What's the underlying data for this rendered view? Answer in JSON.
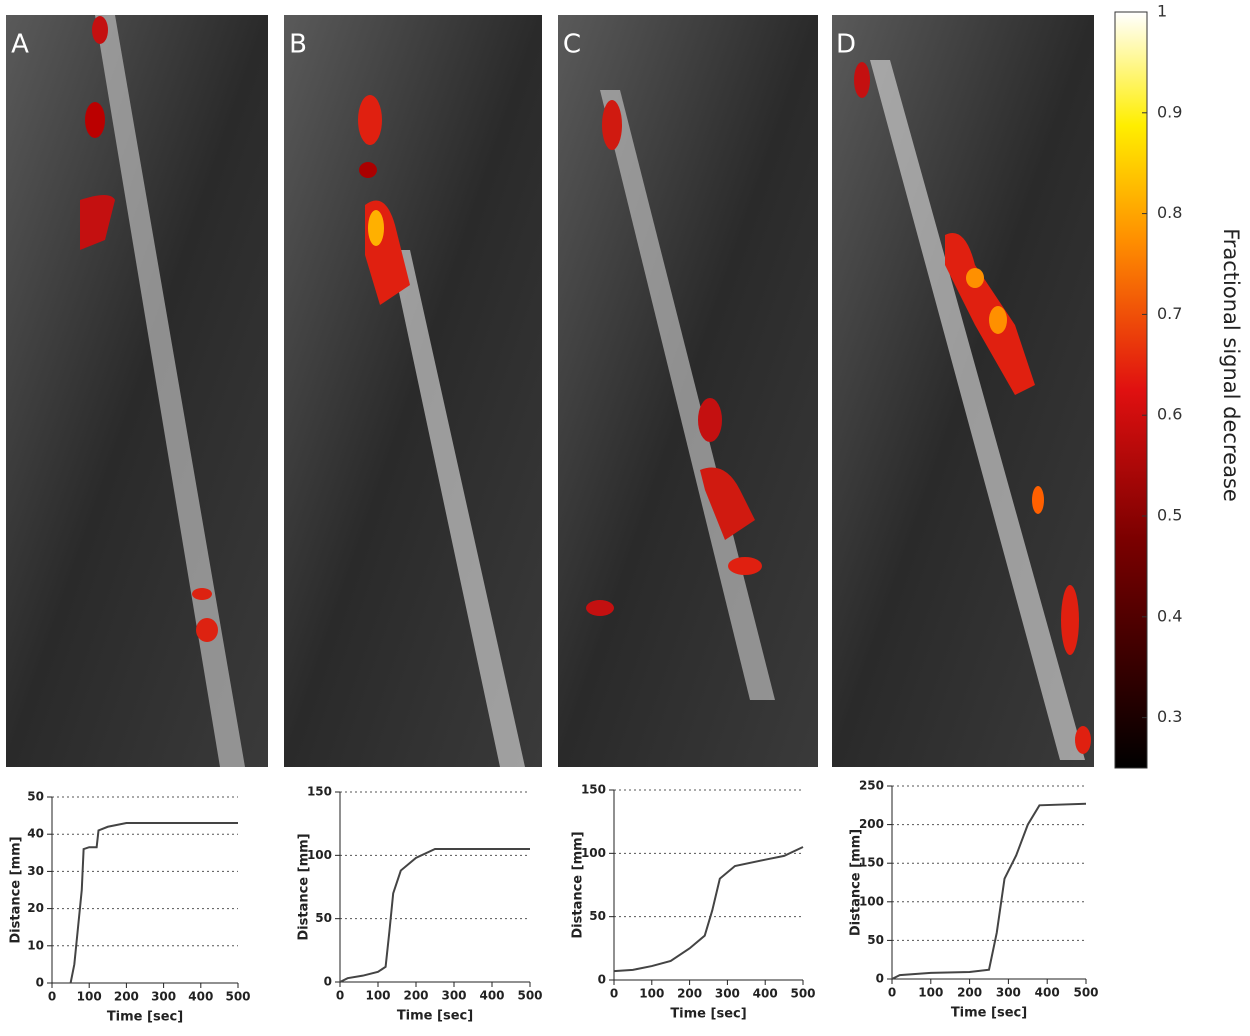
{
  "chart_data": [
    {
      "type": "colorbar",
      "label": "Fractional signal decrease",
      "ylim": [
        0.25,
        1
      ],
      "yticks": [
        0.3,
        0.4,
        0.5,
        0.6,
        0.7,
        0.8,
        0.9,
        1
      ]
    },
    {
      "type": "line",
      "panel": "A",
      "xlabel": "Time [sec]",
      "ylabel": "Distance [mm]",
      "color": "#444444",
      "grid": true,
      "x": [
        50,
        60,
        70,
        80,
        85,
        100,
        120,
        125,
        150,
        200,
        300,
        500
      ],
      "values": [
        0,
        5,
        15,
        25,
        36,
        36.5,
        36.5,
        41,
        42,
        43,
        43,
        43
      ],
      "xlim": [
        0,
        500
      ],
      "xticks": [
        0,
        100,
        200,
        300,
        400,
        500
      ],
      "ylim": [
        0,
        50
      ],
      "yticks": [
        0,
        10,
        20,
        30,
        40,
        50
      ]
    },
    {
      "type": "line",
      "panel": "B",
      "xlabel": "Time [sec]",
      "ylabel": "Distance [mm]",
      "color": "#444444",
      "grid": true,
      "x": [
        0,
        20,
        60,
        100,
        120,
        130,
        140,
        160,
        200,
        250,
        500
      ],
      "values": [
        0,
        3,
        5,
        8,
        12,
        40,
        70,
        88,
        98,
        105,
        105
      ],
      "xlim": [
        0,
        500
      ],
      "xticks": [
        0,
        100,
        200,
        300,
        400,
        500
      ],
      "ylim": [
        0,
        150
      ],
      "yticks": [
        0,
        50,
        100,
        150
      ]
    },
    {
      "type": "line",
      "panel": "C",
      "xlabel": "Time [sec]",
      "ylabel": "Distance [mm]",
      "color": "#444444",
      "grid": true,
      "x": [
        0,
        50,
        100,
        150,
        200,
        240,
        260,
        280,
        320,
        400,
        450,
        500
      ],
      "values": [
        7,
        8,
        11,
        15,
        25,
        35,
        55,
        80,
        90,
        95,
        98,
        105
      ],
      "xlim": [
        0,
        500
      ],
      "xticks": [
        0,
        100,
        200,
        300,
        400,
        500
      ],
      "ylim": [
        0,
        150
      ],
      "yticks": [
        0,
        50,
        100,
        150
      ]
    },
    {
      "type": "line",
      "panel": "D",
      "xlabel": "Time [sec]",
      "ylabel": "Distance [mm]",
      "color": "#444444",
      "grid": true,
      "x": [
        0,
        20,
        100,
        200,
        250,
        270,
        290,
        320,
        350,
        380,
        500
      ],
      "values": [
        0,
        5,
        8,
        9,
        12,
        60,
        130,
        160,
        200,
        225,
        227
      ],
      "xlim": [
        0,
        500
      ],
      "xticks": [
        0,
        100,
        200,
        300,
        400,
        500
      ],
      "ylim": [
        0,
        250
      ],
      "yticks": [
        0,
        50,
        100,
        150,
        200,
        250
      ]
    }
  ]
}
